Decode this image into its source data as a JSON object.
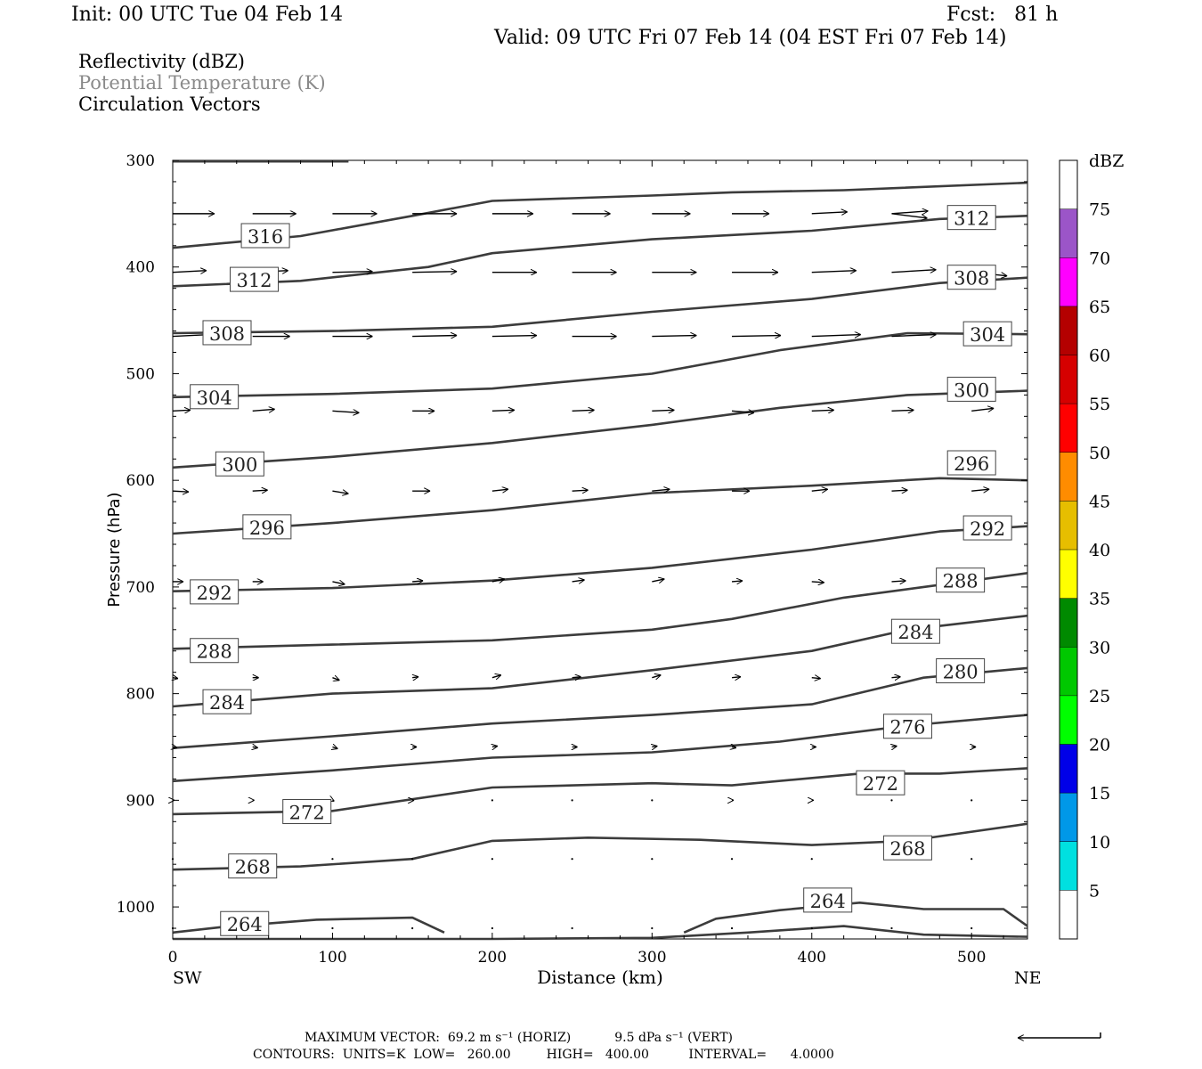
{
  "header": {
    "init": "Init: 00 UTC Tue 04 Feb 14",
    "fcst": "Fcst:   81 h",
    "valid": "Valid: 09 UTC Fri 07 Feb 14 (04 EST Fri 07 Feb 14)"
  },
  "fields": [
    "Reflectivity (dBZ)",
    "Potential Temperature (K)",
    "Circulation Vectors"
  ],
  "colors": {
    "contour": "#3c3c3c",
    "vector": "#000000",
    "field_potential_temperature": "#8a8a8a"
  },
  "chart_data": {
    "type": "cross-section",
    "xlabel": "Distance (km)",
    "ylabel": "Pressure (hPa)",
    "xlim": [
      0,
      535
    ],
    "ylim": [
      1030,
      300
    ],
    "x_ticks": [
      0,
      100,
      200,
      300,
      400,
      500
    ],
    "y_ticks": [
      300,
      400,
      500,
      600,
      700,
      800,
      900,
      1000
    ],
    "end_labels": {
      "left": "SW",
      "right": "NE"
    },
    "contour_field": "Potential Temperature (K)",
    "contours": [
      {
        "level": 264,
        "points": [
          [
            0,
            1024
          ],
          [
            30,
            1019
          ],
          [
            90,
            1012
          ],
          [
            150,
            1010
          ],
          [
            170,
            1024
          ]
        ]
      },
      {
        "level": 264,
        "points": [
          [
            320,
            1024
          ],
          [
            340,
            1011
          ],
          [
            380,
            1003
          ],
          [
            430,
            996
          ],
          [
            470,
            1002
          ],
          [
            520,
            1002
          ],
          [
            535,
            1018
          ]
        ]
      },
      {
        "level": 264,
        "points": [
          [
            0,
            1030
          ],
          [
            200,
            1030
          ],
          [
            300,
            1029
          ],
          [
            360,
            1024
          ],
          [
            420,
            1018
          ],
          [
            470,
            1026
          ],
          [
            535,
            1028
          ]
        ]
      },
      {
        "level": 268,
        "points": [
          [
            0,
            965
          ],
          [
            80,
            962
          ],
          [
            150,
            955
          ],
          [
            200,
            938
          ],
          [
            260,
            935
          ],
          [
            330,
            937
          ],
          [
            400,
            942
          ],
          [
            460,
            938
          ],
          [
            535,
            922
          ]
        ]
      },
      {
        "level": 272,
        "points": [
          [
            0,
            913
          ],
          [
            100,
            910
          ],
          [
            200,
            888
          ],
          [
            300,
            884
          ],
          [
            350,
            886
          ],
          [
            430,
            875
          ],
          [
            480,
            875
          ],
          [
            535,
            870
          ]
        ]
      },
      {
        "level": 276,
        "points": [
          [
            0,
            882
          ],
          [
            100,
            872
          ],
          [
            200,
            860
          ],
          [
            300,
            855
          ],
          [
            380,
            845
          ],
          [
            460,
            830
          ],
          [
            535,
            820
          ]
        ]
      },
      {
        "level": 280,
        "points": [
          [
            0,
            851
          ],
          [
            100,
            840
          ],
          [
            200,
            828
          ],
          [
            300,
            820
          ],
          [
            400,
            810
          ],
          [
            470,
            785
          ],
          [
            535,
            776
          ]
        ]
      },
      {
        "level": 284,
        "points": [
          [
            0,
            812
          ],
          [
            100,
            800
          ],
          [
            200,
            795
          ],
          [
            300,
            778
          ],
          [
            400,
            760
          ],
          [
            460,
            740
          ],
          [
            535,
            727
          ]
        ]
      },
      {
        "level": 288,
        "points": [
          [
            0,
            758
          ],
          [
            100,
            754
          ],
          [
            200,
            750
          ],
          [
            300,
            740
          ],
          [
            350,
            730
          ],
          [
            420,
            710
          ],
          [
            470,
            700
          ],
          [
            535,
            687
          ]
        ]
      },
      {
        "level": 292,
        "points": [
          [
            0,
            704
          ],
          [
            100,
            701
          ],
          [
            200,
            694
          ],
          [
            300,
            682
          ],
          [
            400,
            665
          ],
          [
            480,
            648
          ],
          [
            535,
            643
          ]
        ]
      },
      {
        "level": 296,
        "points": [
          [
            0,
            650
          ],
          [
            100,
            640
          ],
          [
            200,
            628
          ],
          [
            300,
            612
          ],
          [
            400,
            605
          ],
          [
            480,
            598
          ],
          [
            535,
            600
          ]
        ]
      },
      {
        "level": 300,
        "points": [
          [
            0,
            588
          ],
          [
            100,
            578
          ],
          [
            200,
            565
          ],
          [
            300,
            548
          ],
          [
            380,
            532
          ],
          [
            460,
            520
          ],
          [
            535,
            516
          ]
        ]
      },
      {
        "level": 304,
        "points": [
          [
            0,
            522
          ],
          [
            100,
            519
          ],
          [
            200,
            514
          ],
          [
            300,
            500
          ],
          [
            380,
            478
          ],
          [
            460,
            462
          ],
          [
            535,
            463
          ]
        ]
      },
      {
        "level": 308,
        "points": [
          [
            0,
            462
          ],
          [
            100,
            460
          ],
          [
            200,
            456
          ],
          [
            300,
            442
          ],
          [
            400,
            430
          ],
          [
            480,
            415
          ],
          [
            535,
            410
          ]
        ]
      },
      {
        "level": 312,
        "points": [
          [
            0,
            418
          ],
          [
            80,
            413
          ],
          [
            160,
            400
          ],
          [
            200,
            387
          ],
          [
            300,
            374
          ],
          [
            400,
            366
          ],
          [
            480,
            355
          ],
          [
            535,
            352
          ]
        ]
      },
      {
        "level": 316,
        "points": [
          [
            0,
            382
          ],
          [
            80,
            371
          ],
          [
            150,
            352
          ],
          [
            200,
            338
          ],
          [
            300,
            333
          ],
          [
            350,
            330
          ],
          [
            420,
            328
          ],
          [
            535,
            321
          ]
        ]
      },
      {
        "level": 320,
        "points": [
          [
            0,
            301
          ],
          [
            110,
            301
          ]
        ]
      }
    ],
    "contour_labels": [
      {
        "text": "316",
        "x": 58,
        "p": 371
      },
      {
        "text": "312",
        "x": 51,
        "p": 412
      },
      {
        "text": "308",
        "x": 34,
        "p": 462
      },
      {
        "text": "304",
        "x": 26,
        "p": 522
      },
      {
        "text": "300",
        "x": 42,
        "p": 585
      },
      {
        "text": "296",
        "x": 59,
        "p": 644
      },
      {
        "text": "292",
        "x": 26,
        "p": 705
      },
      {
        "text": "288",
        "x": 26,
        "p": 760
      },
      {
        "text": "284",
        "x": 34,
        "p": 808
      },
      {
        "text": "272",
        "x": 84,
        "p": 911
      },
      {
        "text": "268",
        "x": 50,
        "p": 962
      },
      {
        "text": "264",
        "x": 45,
        "p": 1016
      },
      {
        "text": "312",
        "x": 500,
        "p": 354
      },
      {
        "text": "308",
        "x": 500,
        "p": 410
      },
      {
        "text": "304",
        "x": 510,
        "p": 463
      },
      {
        "text": "300",
        "x": 500,
        "p": 515
      },
      {
        "text": "296",
        "x": 500,
        "p": 584
      },
      {
        "text": "292",
        "x": 510,
        "p": 645
      },
      {
        "text": "288",
        "x": 493,
        "p": 694
      },
      {
        "text": "284",
        "x": 465,
        "p": 742
      },
      {
        "text": "280",
        "x": 493,
        "p": 779
      },
      {
        "text": "276",
        "x": 460,
        "p": 831
      },
      {
        "text": "272",
        "x": 443,
        "p": 884
      },
      {
        "text": "268",
        "x": 460,
        "p": 945
      },
      {
        "text": "264",
        "x": 410,
        "p": 994
      }
    ],
    "vector_x": [
      0,
      50,
      100,
      150,
      200,
      250,
      300,
      350,
      400,
      450,
      500
    ],
    "vector_rows": [
      {
        "p": 350,
        "x_from": [
          0,
          50,
          100,
          150,
          200,
          250,
          300,
          350,
          400,
          450,
          450
        ],
        "u": [
          47,
          49,
          50,
          50,
          46,
          43,
          43,
          42,
          40,
          41,
          40
        ],
        "w": [
          0,
          0,
          0,
          0,
          0,
          0,
          0,
          0,
          -2,
          -3,
          5
        ],
        "note": "upper row"
      },
      {
        "p": 405,
        "u": [
          38,
          40,
          45,
          50,
          50,
          50,
          50,
          52,
          50,
          50,
          40
        ],
        "w": [
          -2,
          -2,
          -1,
          -1,
          0,
          0,
          0,
          0,
          -2,
          -3,
          4
        ]
      },
      {
        "p": 465,
        "u": [
          42,
          42,
          45,
          50,
          50,
          50,
          50,
          55,
          55,
          50,
          40
        ],
        "w": [
          -2,
          0,
          0,
          -1,
          -1,
          0,
          -1,
          -1,
          -2,
          -2,
          3
        ]
      },
      {
        "p": 535,
        "u": [
          20,
          25,
          30,
          25,
          25,
          25,
          25,
          25,
          25,
          25,
          25
        ],
        "w": [
          -1,
          -2,
          2,
          0,
          -1,
          -1,
          -1,
          2,
          -1,
          -1,
          -3
        ]
      },
      {
        "p": 610,
        "u": [
          18,
          17,
          18,
          20,
          18,
          18,
          20,
          20,
          18,
          18,
          20
        ],
        "w": [
          1,
          -1,
          3,
          0,
          -2,
          -1,
          -2,
          0,
          -2,
          -1,
          -2
        ]
      },
      {
        "p": 695,
        "u": [
          12,
          12,
          14,
          12,
          14,
          14,
          14,
          12,
          14,
          16,
          12
        ],
        "w": [
          0,
          0,
          3,
          -1,
          -3,
          -2,
          -3,
          -1,
          1,
          -1,
          -2
        ]
      },
      {
        "p": 785,
        "u": [
          6,
          7,
          8,
          7,
          10,
          10,
          10,
          10,
          10,
          10,
          10
        ],
        "w": [
          1,
          0,
          3,
          -1,
          -3,
          -1,
          -3,
          -1,
          1,
          -1,
          0
        ]
      },
      {
        "p": 850,
        "u": [
          5,
          6,
          6,
          5,
          6,
          6,
          6,
          5,
          5,
          6,
          5
        ],
        "w": [
          1,
          1,
          2,
          0,
          -1,
          0,
          -1,
          1,
          0,
          -1,
          0
        ]
      },
      {
        "p": 900,
        "u": [
          2,
          2,
          2,
          2,
          1,
          1,
          1,
          2,
          2,
          1,
          1
        ],
        "w": [
          0,
          0,
          1,
          0,
          0,
          0,
          0,
          0,
          0,
          -2,
          0
        ]
      },
      {
        "p": 955,
        "u": [
          1,
          1,
          0,
          0,
          0,
          0,
          1,
          1,
          0,
          0,
          0
        ],
        "w": [
          0,
          -1,
          0,
          0,
          -1,
          -1,
          1,
          -1,
          0,
          -2,
          0
        ]
      },
      {
        "p": 1020,
        "u": [
          0,
          0,
          0,
          0,
          0,
          0,
          0,
          0,
          0,
          0,
          0
        ],
        "w": [
          0,
          0,
          0,
          0,
          0,
          0,
          0,
          0,
          0,
          0,
          0
        ]
      }
    ],
    "colorbar": {
      "unit": "dBZ",
      "labels": [
        "5",
        "10",
        "15",
        "20",
        "25",
        "30",
        "35",
        "40",
        "45",
        "50",
        "55",
        "60",
        "65",
        "70",
        "75"
      ],
      "colors": [
        "#ffffff",
        "#00e0e0",
        "#0098e8",
        "#0000e8",
        "#00ff00",
        "#00c800",
        "#008a00",
        "#ffff00",
        "#e6be00",
        "#ff8c00",
        "#ff0000",
        "#d60000",
        "#b40000",
        "#ff00ff",
        "#9b55c8",
        "#ffffff"
      ]
    },
    "max_vector_label": "MAXIMUM VECTOR:  69.2 m s⁻¹ (HORIZ)           9.5 dPa s⁻¹ (VERT)",
    "contours_info": "CONTOURS:  UNITS=K  LOW=   260.00         HIGH=   400.00          INTERVAL=      4.0000"
  }
}
